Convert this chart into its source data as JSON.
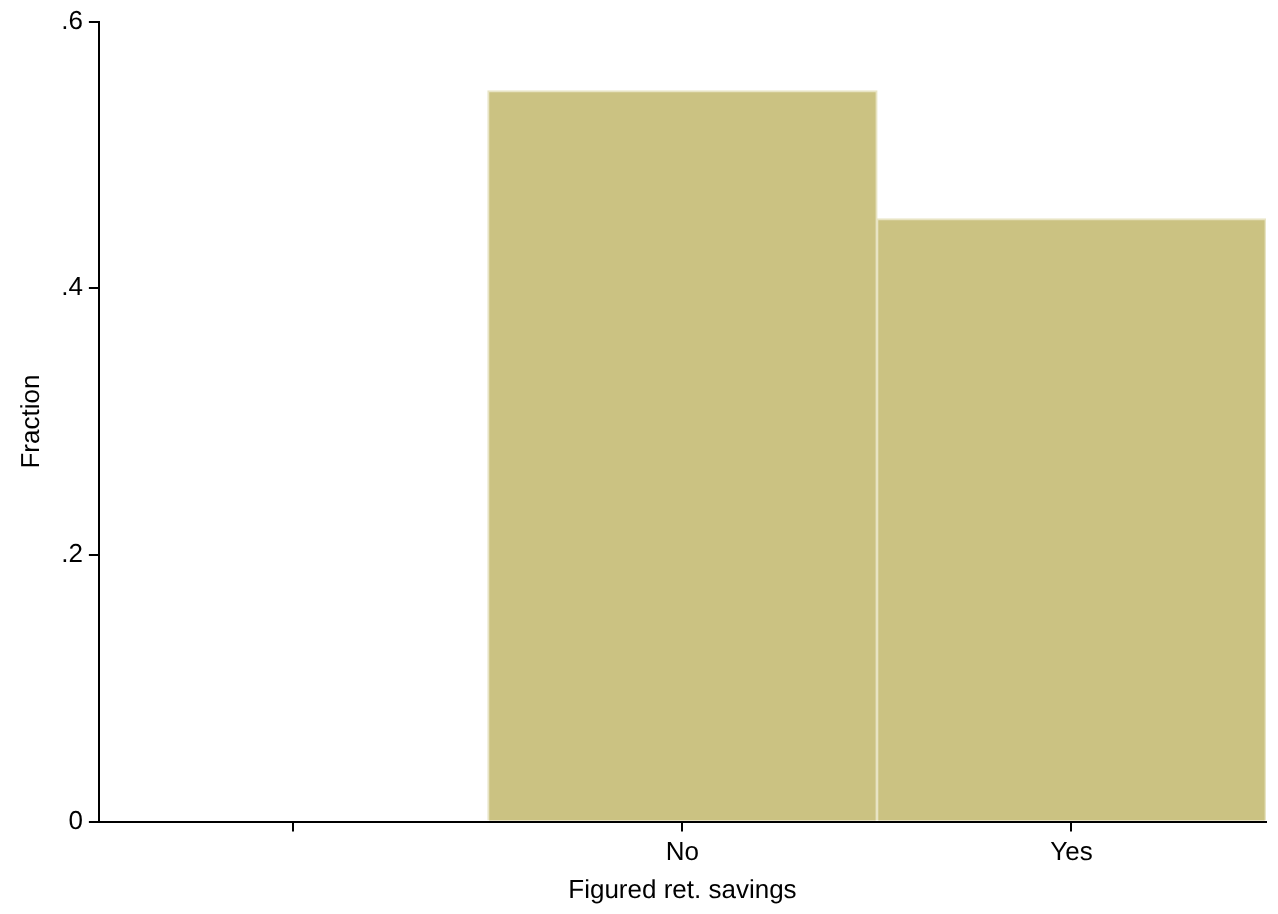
{
  "chart_data": {
    "type": "bar",
    "xlabel": "Figured ret. savings",
    "ylabel": "Fraction",
    "categories": [
      null,
      "No",
      "Yes"
    ],
    "values": [
      null,
      0.548,
      0.452
    ],
    "color": "#cbc282",
    "ylim": [
      0,
      0.6
    ],
    "yticks": [
      0,
      {
        "value": 0.2,
        "label": ".2"
      },
      {
        "value": 0.4,
        "label": ".4"
      },
      {
        "value": 0.6,
        "label": ".6"
      }
    ],
    "grid": false,
    "legend": false
  }
}
